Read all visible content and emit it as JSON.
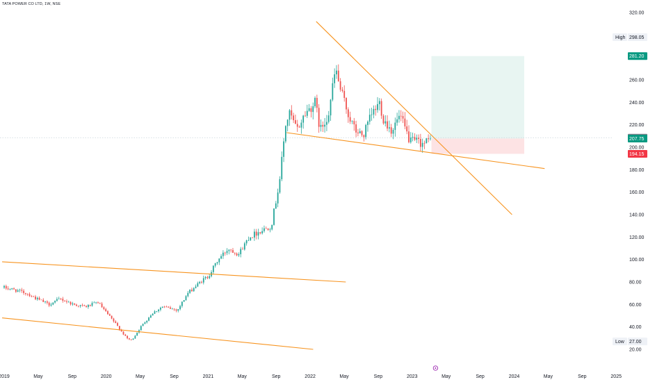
{
  "header": {
    "symbol": "TATA POWER CO LTD, 1W, NSE"
  },
  "colors": {
    "up": "#26a69a",
    "down": "#ef5350",
    "trendline": "#f7931e",
    "target_zone": "#e8f5f2",
    "stop_zone": "#fde3e4",
    "target_tag": "#089981",
    "stop_tag": "#f23645",
    "last_tag": "#7b7f89",
    "marker": "#9c27b0"
  },
  "chart_data": {
    "type": "candlestick",
    "title": "TATA POWER CO LTD, 1W, NSE",
    "ylim": [
      10,
      330
    ],
    "y_ticks": [
      20,
      40,
      60,
      80,
      100,
      120,
      140,
      160,
      180,
      200,
      220,
      240,
      260,
      280,
      300,
      320
    ],
    "x_ticks": [
      "2019",
      "May",
      "Sep",
      "2020",
      "May",
      "Sep",
      "2021",
      "May",
      "Sep",
      "2022",
      "May",
      "Sep",
      "2023",
      "May",
      "Sep",
      "2024",
      "May",
      "Sep",
      "2025"
    ],
    "x_range": [
      2019.0,
      2025.05
    ],
    "series_anchor": {
      "start": 2019.0,
      "start_price": 75,
      "last": 2023.19,
      "last_price": 207.75,
      "step_years": 0.01917
    },
    "path_keypoints": [
      [
        2019.0,
        75
      ],
      [
        2019.1,
        73
      ],
      [
        2019.22,
        70
      ],
      [
        2019.32,
        65
      ],
      [
        2019.44,
        60
      ],
      [
        2019.55,
        65
      ],
      [
        2019.68,
        60
      ],
      [
        2019.8,
        58
      ],
      [
        2019.92,
        62
      ],
      [
        2019.98,
        55
      ],
      [
        2020.1,
        42
      ],
      [
        2020.2,
        30
      ],
      [
        2020.25,
        28
      ],
      [
        2020.34,
        40
      ],
      [
        2020.45,
        52
      ],
      [
        2020.55,
        58
      ],
      [
        2020.7,
        55
      ],
      [
        2020.8,
        70
      ],
      [
        2020.95,
        82
      ],
      [
        2021.0,
        85
      ],
      [
        2021.1,
        100
      ],
      [
        2021.2,
        110
      ],
      [
        2021.3,
        105
      ],
      [
        2021.4,
        120
      ],
      [
        2021.5,
        125
      ],
      [
        2021.62,
        130
      ],
      [
        2021.7,
        170
      ],
      [
        2021.76,
        220
      ],
      [
        2021.8,
        230
      ],
      [
        2021.87,
        215
      ],
      [
        2021.95,
        230
      ],
      [
        2022.05,
        240
      ],
      [
        2022.1,
        215
      ],
      [
        2022.18,
        230
      ],
      [
        2022.25,
        270
      ],
      [
        2022.3,
        250
      ],
      [
        2022.38,
        228
      ],
      [
        2022.44,
        215
      ],
      [
        2022.52,
        210
      ],
      [
        2022.6,
        228
      ],
      [
        2022.68,
        240
      ],
      [
        2022.72,
        225
      ],
      [
        2022.8,
        215
      ],
      [
        2022.88,
        228
      ],
      [
        2022.98,
        205
      ],
      [
        2023.06,
        205
      ],
      [
        2023.12,
        203
      ],
      [
        2023.19,
        207.75
      ]
    ],
    "dashed_level": 208.5,
    "price_levels": {
      "high": 298.05,
      "target": 281.2,
      "last_close": 208.5,
      "current": 207.75,
      "stop": 194.15,
      "low": 27.0
    },
    "labels": {
      "high": "High",
      "low": "Low"
    },
    "trendlines": [
      {
        "from": [
          2022.06,
          312
        ],
        "to": [
          2023.98,
          140
        ]
      },
      {
        "from": [
          2021.77,
          213
        ],
        "to": [
          2024.3,
          181
        ]
      },
      {
        "from": [
          2018.98,
          98
        ],
        "to": [
          2022.35,
          80
        ]
      },
      {
        "from": [
          2018.98,
          48
        ],
        "to": [
          2022.03,
          20
        ]
      }
    ],
    "position_zone": {
      "start": 2023.19,
      "end": 2024.1,
      "entry": 207.75,
      "target": 281.2,
      "stop": 194.15
    },
    "marker_at": 2023.23
  },
  "price_tags": {
    "high_label": "High",
    "high_value": "298.05",
    "target": "281.20",
    "last_close": "208.50",
    "current": "207.75",
    "stop": "194.15",
    "low_label": "Low",
    "low_value": "27.00"
  }
}
